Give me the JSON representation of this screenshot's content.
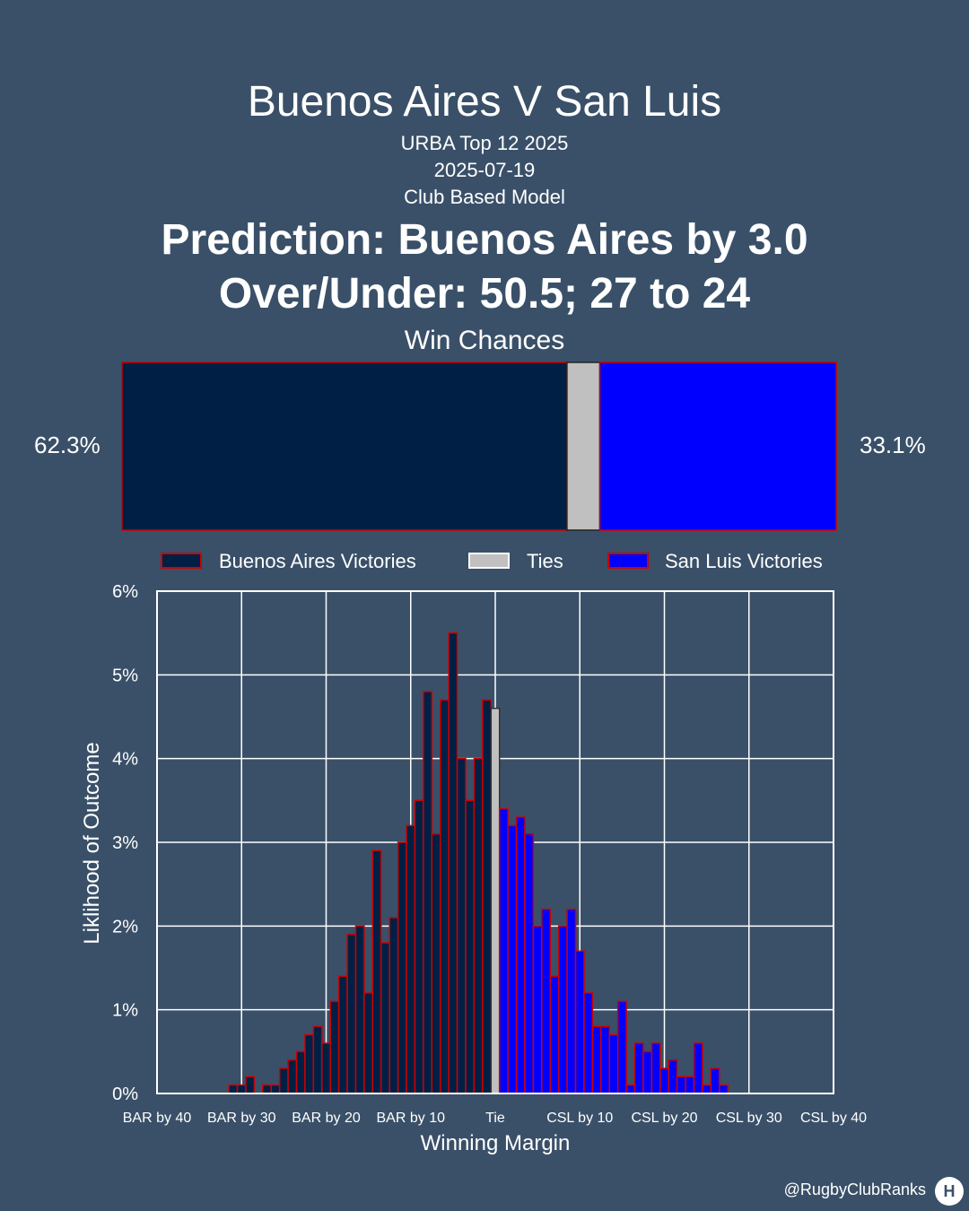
{
  "header": {
    "title": "Buenos Aires V San Luis",
    "competition": "URBA Top 12 2025",
    "date": "2025-07-19",
    "model": "Club Based Model",
    "prediction": "Prediction: Buenos Aires by 3.0",
    "over_under": "Over/Under: 50.5; 27 to 24"
  },
  "win_chances": {
    "title": "Win Chances",
    "home_pct_label": "62.3%",
    "away_pct_label": "33.1%",
    "segments": [
      {
        "name": "Buenos Aires Victories",
        "value": 62.3,
        "color": "#001f45"
      },
      {
        "name": "Ties",
        "value": 4.6,
        "color": "#c0c0c0"
      },
      {
        "name": "San Luis Victories",
        "value": 33.1,
        "color": "#0000ff"
      }
    ]
  },
  "legend": {
    "items": [
      {
        "label": "Buenos Aires Victories",
        "color": "#001f45"
      },
      {
        "label": "Ties",
        "color": "#c0c0c0"
      },
      {
        "label": "San Luis Victories",
        "color": "#0000ff"
      }
    ]
  },
  "colors": {
    "background": "#3a5068",
    "home": "#001f45",
    "tie": "#c0c0c0",
    "away": "#0000ff",
    "outline": "#cc0000",
    "grid": "#ffffff"
  },
  "chart_data": {
    "type": "bar",
    "xlabel": "Winning Margin",
    "ylabel": "Liklihood of Outcome",
    "xlim": [
      -40,
      40
    ],
    "ylim": [
      0,
      6
    ],
    "xticks": [
      -40,
      -30,
      -20,
      -10,
      0,
      10,
      20,
      30,
      40
    ],
    "xtick_labels": [
      "BAR by 40",
      "BAR by 30",
      "BAR by 20",
      "BAR by 10",
      "Tie",
      "CSL by 10",
      "CSL by 20",
      "CSL by 30",
      "CSL by 40"
    ],
    "yticks": [
      0,
      1,
      2,
      3,
      4,
      5,
      6
    ],
    "ytick_labels": [
      "0%",
      "1%",
      "2%",
      "3%",
      "4%",
      "5%",
      "6%"
    ],
    "grid": true,
    "x": [
      -31,
      -30,
      -29,
      -27,
      -26,
      -25,
      -24,
      -23,
      -22,
      -21,
      -20,
      -19,
      -18,
      -17,
      -16,
      -15,
      -14,
      -13,
      -12,
      -11,
      -10,
      -9,
      -8,
      -7,
      -6,
      -5,
      -4,
      -3,
      -2,
      -1,
      0,
      1,
      2,
      3,
      4,
      5,
      6,
      7,
      8,
      9,
      10,
      11,
      12,
      13,
      14,
      15,
      16,
      17,
      18,
      19,
      20,
      21,
      22,
      23,
      24,
      25,
      26,
      27
    ],
    "values": [
      0.1,
      0.1,
      0.2,
      0.1,
      0.1,
      0.3,
      0.4,
      0.5,
      0.7,
      0.8,
      0.6,
      1.1,
      1.4,
      1.9,
      2.0,
      1.2,
      2.9,
      1.8,
      2.1,
      3.0,
      3.2,
      3.5,
      4.8,
      3.1,
      4.7,
      5.5,
      4.0,
      3.5,
      4.0,
      4.7,
      4.6,
      3.4,
      3.2,
      3.3,
      3.1,
      2.0,
      2.2,
      1.4,
      2.0,
      2.2,
      1.7,
      1.2,
      0.8,
      0.8,
      0.7,
      1.1,
      0.1,
      0.6,
      0.5,
      0.6,
      0.3,
      0.4,
      0.2,
      0.2,
      0.6,
      0.1,
      0.3,
      0.1
    ]
  },
  "footer": {
    "credit": "@RugbyClubRanks",
    "logo": "H"
  }
}
